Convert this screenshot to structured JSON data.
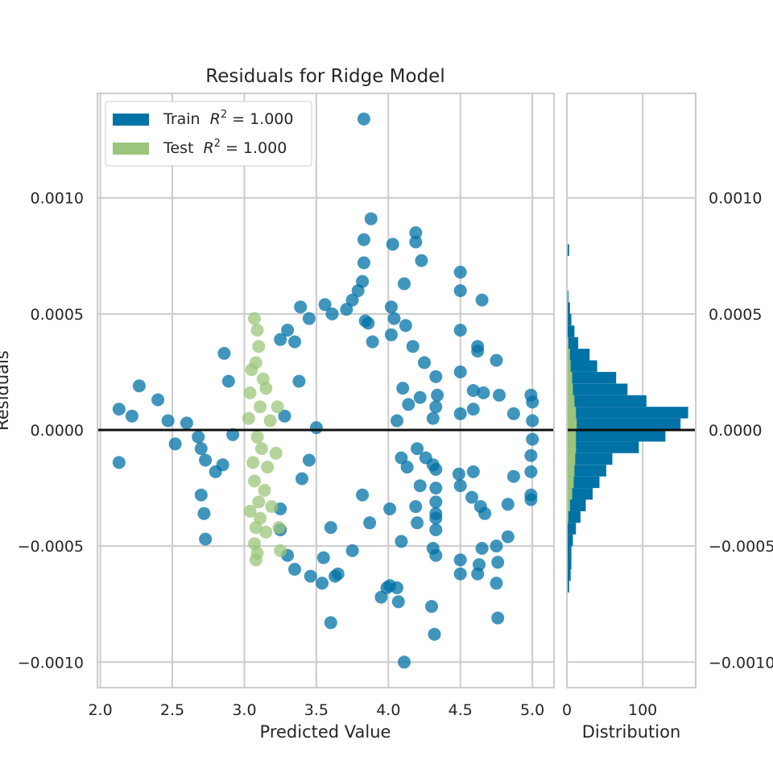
{
  "chart_data": {
    "type": "scatter",
    "title": "Residuals for Ridge Model",
    "xlabel": "Predicted Value",
    "ylabel": "Residuals",
    "xlim": [
      1.98,
      5.15
    ],
    "ylim": [
      -0.00111,
      0.00145
    ],
    "xticks": [
      "2.0",
      "2.5",
      "3.0",
      "3.5",
      "4.0",
      "4.5",
      "5.0"
    ],
    "xtick_values": [
      2.0,
      2.5,
      3.0,
      3.5,
      4.0,
      4.5,
      5.0
    ],
    "yticks": [
      "0.0010",
      "0.0005",
      "0.0000",
      "−0.0005",
      "−0.0010"
    ],
    "ytick_values": [
      0.001,
      0.0005,
      0.0,
      -0.0005,
      -0.001
    ],
    "legend": {
      "placement": "top-left",
      "entries": [
        "Train",
        "Test"
      ],
      "r2_label": "R",
      "r2_value": "= 1.000"
    },
    "grid": true,
    "zero_line": 0.0,
    "colors": {
      "train": "#0072a5",
      "test": "#9bc57b",
      "grid": "#cccccc",
      "axes_edge": "#cccccc",
      "zero": "#111111"
    },
    "series": [
      {
        "name": "Train R^2 = 1.000",
        "role": "train",
        "points": [
          [
            3.83,
            0.00134
          ],
          [
            3.88,
            0.00091
          ],
          [
            4.03,
            0.0008
          ],
          [
            4.19,
            0.00085
          ],
          [
            4.19,
            0.00081
          ],
          [
            4.23,
            0.00073
          ],
          [
            3.83,
            0.00082
          ],
          [
            3.83,
            0.00072
          ],
          [
            3.82,
            0.00064
          ],
          [
            3.79,
            0.0006
          ],
          [
            4.11,
            0.00063
          ],
          [
            3.75,
            0.00056
          ],
          [
            3.71,
            0.00052
          ],
          [
            3.56,
            0.00054
          ],
          [
            3.39,
            0.00053
          ],
          [
            3.61,
            0.0005
          ],
          [
            4.02,
            0.00053
          ],
          [
            4.04,
            0.00048
          ],
          [
            4.12,
            0.00045
          ],
          [
            4.5,
            0.00068
          ],
          [
            4.5,
            0.0006
          ],
          [
            4.65,
            0.00056
          ],
          [
            4.5,
            0.00043
          ],
          [
            4.62,
            0.00036
          ],
          [
            4.62,
            0.00034
          ],
          [
            4.75,
            0.0003
          ],
          [
            3.86,
            0.00046
          ],
          [
            3.89,
            0.00038
          ],
          [
            3.84,
            0.00047
          ],
          [
            3.45,
            0.00048
          ],
          [
            4.02,
            0.00041
          ],
          [
            4.17,
            0.00036
          ],
          [
            4.25,
            0.00029
          ],
          [
            4.33,
            0.00023
          ],
          [
            4.5,
            0.00025
          ],
          [
            4.59,
            0.00017
          ],
          [
            4.66,
            0.00016
          ],
          [
            4.77,
            0.00015
          ],
          [
            4.99,
            0.00015
          ],
          [
            5.0,
            0.00012
          ],
          [
            4.87,
            7e-05
          ],
          [
            5.0,
            4e-05
          ],
          [
            4.5,
            7e-05
          ],
          [
            4.59,
            9e-05
          ],
          [
            4.34,
            0.00015
          ],
          [
            4.33,
            0.0001
          ],
          [
            4.31,
            5e-05
          ],
          [
            4.22,
            0.00014
          ],
          [
            4.14,
            0.00011
          ],
          [
            4.1,
            0.00018
          ],
          [
            4.06,
            4e-05
          ],
          [
            4.2,
            -8e-05
          ],
          [
            4.26,
            -0.00012
          ],
          [
            4.31,
            -0.00015
          ],
          [
            4.33,
            -0.00017
          ],
          [
            4.13,
            -0.00016
          ],
          [
            4.09,
            -0.00012
          ],
          [
            4.22,
            -0.00024
          ],
          [
            4.33,
            -0.00025
          ],
          [
            4.33,
            -0.00031
          ],
          [
            4.19,
            -0.00033
          ],
          [
            4.01,
            -0.00034
          ],
          [
            4.33,
            -0.00036
          ],
          [
            4.2,
            -0.0004
          ],
          [
            4.33,
            -0.00038
          ],
          [
            4.33,
            -0.00043
          ],
          [
            4.09,
            -0.00048
          ],
          [
            4.31,
            -0.00051
          ],
          [
            4.33,
            -0.00054
          ],
          [
            4.5,
            -0.00062
          ],
          [
            4.5,
            -0.00056
          ],
          [
            4.63,
            -0.00058
          ],
          [
            4.65,
            -0.00051
          ],
          [
            4.75,
            -0.0005
          ],
          [
            4.83,
            -0.00046
          ],
          [
            4.67,
            -0.00036
          ],
          [
            4.64,
            -0.00033
          ],
          [
            4.58,
            -0.00029
          ],
          [
            4.5,
            -0.00024
          ],
          [
            4.49,
            -0.00019
          ],
          [
            4.59,
            -0.00018
          ],
          [
            4.83,
            -0.00032
          ],
          [
            4.99,
            -0.00028
          ],
          [
            4.99,
            -0.0003
          ],
          [
            4.87,
            -0.0002
          ],
          [
            4.99,
            -0.00011
          ],
          [
            5.0,
            -4e-05
          ],
          [
            4.99,
            -0.00018
          ],
          [
            4.76,
            -0.00057
          ],
          [
            4.62,
            -0.00062
          ],
          [
            4.75,
            -0.00066
          ],
          [
            4.76,
            -0.00081
          ],
          [
            4.01,
            -0.00067
          ],
          [
            4.06,
            -0.00068
          ],
          [
            4.07,
            -0.00074
          ],
          [
            3.95,
            -0.00072
          ],
          [
            3.99,
            -0.00068
          ],
          [
            4.3,
            -0.00076
          ],
          [
            4.32,
            -0.00088
          ],
          [
            4.11,
            -0.001
          ],
          [
            3.6,
            -0.00083
          ],
          [
            3.54,
            -0.00066
          ],
          [
            3.46,
            -0.00063
          ],
          [
            3.63,
            -0.00063
          ],
          [
            3.75,
            -0.00052
          ],
          [
            3.65,
            -0.00062
          ],
          [
            3.55,
            -0.00055
          ],
          [
            3.87,
            -0.0004
          ],
          [
            3.82,
            -0.00028
          ],
          [
            2.13,
            9e-05
          ],
          [
            2.13,
            -0.00014
          ],
          [
            2.27,
            0.00019
          ],
          [
            2.22,
            6e-05
          ],
          [
            2.4,
            0.00013
          ],
          [
            2.47,
            4e-05
          ],
          [
            2.52,
            -6e-05
          ],
          [
            2.6,
            3e-05
          ],
          [
            2.68,
            -3e-05
          ],
          [
            2.7,
            -8e-05
          ],
          [
            2.73,
            -0.00013
          ],
          [
            2.7,
            -0.00028
          ],
          [
            2.72,
            -0.00036
          ],
          [
            2.73,
            -0.00047
          ],
          [
            2.8,
            -0.00018
          ],
          [
            2.85,
            -0.00015
          ],
          [
            2.86,
            0.00033
          ],
          [
            2.89,
            0.00021
          ],
          [
            2.92,
            -2e-05
          ],
          [
            3.25,
            0.00039
          ],
          [
            3.3,
            0.00043
          ],
          [
            3.35,
            0.00038
          ],
          [
            3.25,
            -0.00043
          ],
          [
            3.3,
            -0.00054
          ],
          [
            3.35,
            -0.0006
          ],
          [
            3.25,
            -0.00034
          ],
          [
            3.4,
            -0.00021
          ],
          [
            3.45,
            -0.00013
          ],
          [
            3.5,
            1e-05
          ],
          [
            3.38,
            0.00021
          ],
          [
            3.28,
            6e-05
          ],
          [
            3.6,
            -0.00042
          ]
        ]
      },
      {
        "name": "Test R^2 = 1.000",
        "role": "test",
        "points": [
          [
            3.07,
            0.00048
          ],
          [
            3.09,
            0.00043
          ],
          [
            3.1,
            0.00036
          ],
          [
            3.08,
            0.00029
          ],
          [
            3.05,
            0.00026
          ],
          [
            3.13,
            0.00022
          ],
          [
            3.04,
            0.00016
          ],
          [
            3.15,
            0.00018
          ],
          [
            3.11,
            0.0001
          ],
          [
            3.03,
            5e-05
          ],
          [
            3.18,
            4e-05
          ],
          [
            3.09,
            -3e-05
          ],
          [
            3.12,
            -8e-05
          ],
          [
            3.06,
            -0.00014
          ],
          [
            3.16,
            -0.00016
          ],
          [
            3.07,
            -0.00022
          ],
          [
            3.14,
            -0.00026
          ],
          [
            3.1,
            -0.00031
          ],
          [
            3.04,
            -0.00035
          ],
          [
            3.19,
            -0.00033
          ],
          [
            3.11,
            -0.00038
          ],
          [
            3.08,
            -0.00042
          ],
          [
            3.15,
            -0.00044
          ],
          [
            3.07,
            -0.00049
          ],
          [
            3.09,
            -0.00053
          ],
          [
            3.08,
            -0.00056
          ],
          [
            3.24,
            -0.00042
          ],
          [
            3.25,
            -0.00052
          ],
          [
            3.23,
            0.0001
          ],
          [
            3.22,
            -0.0001
          ]
        ]
      }
    ],
    "distribution": {
      "xlabel": "Distribution",
      "xticks": [
        "0",
        "100"
      ],
      "xtick_values": [
        0,
        100
      ],
      "xlim": [
        0,
        170
      ],
      "bin_edges": [
        -0.0007,
        -0.00065,
        -0.0006,
        -0.00055,
        -0.0005,
        -0.00045,
        -0.0004,
        -0.00035,
        -0.0003,
        -0.00025,
        -0.0002,
        -0.00015,
        -0.0001,
        -5e-05,
        0.0,
        5e-05,
        0.0001,
        0.00015,
        0.0002,
        0.00025,
        0.0003,
        0.00035,
        0.0004,
        0.00045,
        0.0005,
        0.00055,
        0.0006,
        0.00065,
        0.0007,
        0.00075,
        0.0008
      ],
      "train_counts": [
        3,
        5,
        6,
        6,
        8,
        12,
        18,
        25,
        34,
        43,
        52,
        60,
        95,
        130,
        150,
        160,
        105,
        80,
        65,
        40,
        30,
        15,
        10,
        6,
        4,
        2,
        1,
        0,
        0,
        3
      ],
      "test_counts": [
        0,
        0,
        0,
        0,
        0,
        0,
        2,
        4,
        7,
        9,
        10,
        11,
        12,
        12,
        13,
        12,
        10,
        8,
        7,
        5,
        4,
        2,
        1,
        0,
        0,
        0,
        0,
        0,
        0,
        0
      ]
    }
  }
}
